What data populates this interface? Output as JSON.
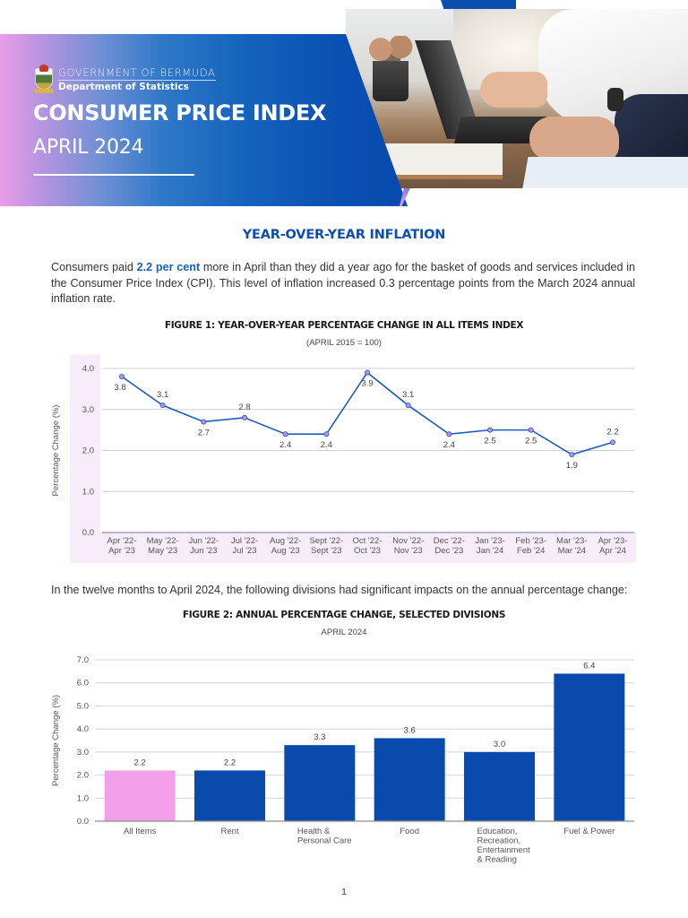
{
  "header": {
    "org_line1": "GOVERNMENT OF BERMUDA",
    "org_line2": "Department of Statistics",
    "title": "CONSUMER PRICE INDEX",
    "period": "APRIL 2024",
    "colors": {
      "brand_blue": "#0b4fb0",
      "brand_pink": "#ea9de8"
    }
  },
  "section": {
    "heading": "YEAR-OVER-YEAR INFLATION",
    "para1_pre": "Consumers paid ",
    "para1_highlight": "2.2 per cent",
    "para1_post": " more in April than they did a year ago for the basket of goods and services included in the Consumer Price Index (CPI). This level of inflation increased 0.3 percentage points from the March 2024 annual inflation rate.",
    "para2": "In the twelve months to April 2024, the following divisions had significant impacts on the annual percentage change:"
  },
  "figure1": {
    "title": "FIGURE 1: YEAR-OVER-YEAR PERCENTAGE CHANGE IN ALL ITEMS INDEX",
    "subtitle": "(APRIL 2015 = 100)"
  },
  "figure2": {
    "title": "FIGURE 2: ANNUAL PERCENTAGE CHANGE, SELECTED DIVISIONS",
    "subtitle": "APRIL 2024"
  },
  "page_number": "1",
  "chart_data": [
    {
      "type": "line",
      "title": "FIGURE 1: YEAR-OVER-YEAR PERCENTAGE CHANGE IN ALL ITEMS INDEX",
      "subtitle": "(APRIL 2015 = 100)",
      "xlabel": "",
      "ylabel": "Percentage Change (%)",
      "ylim": [
        0,
        4
      ],
      "yticks": [
        "0.0",
        "1.0",
        "2.0",
        "3.0",
        "4.0"
      ],
      "grid": true,
      "legend": null,
      "categories": [
        [
          "Apr '22-",
          "Apr '23"
        ],
        [
          "May '22-",
          "May '23"
        ],
        [
          "Jun '22-",
          "Jun '23"
        ],
        [
          "Jul '22-",
          "Jul '23"
        ],
        [
          "Aug '22-",
          "Aug '23"
        ],
        [
          "Sept '22-",
          "Sept '23"
        ],
        [
          "Oct '22-",
          "Oct '23"
        ],
        [
          "Nov '22-",
          "Nov '23"
        ],
        [
          "Dec '22-",
          "Dec '23"
        ],
        [
          "Jan '23-",
          "Jan '24"
        ],
        [
          "Feb '23-",
          "Feb '24"
        ],
        [
          "Mar '23-",
          "Mar '24"
        ],
        [
          "Apr '23-",
          "Apr '24"
        ]
      ],
      "values": [
        3.8,
        3.1,
        2.7,
        2.8,
        2.4,
        2.4,
        3.9,
        3.1,
        2.4,
        2.5,
        2.5,
        1.9,
        2.2
      ],
      "label_pos": [
        "below",
        "above",
        "below",
        "above",
        "below",
        "below",
        "below",
        "above",
        "below",
        "below",
        "below",
        "below",
        "above"
      ],
      "colors": {
        "line": "#1a5cc0",
        "marker": "#c58ae8",
        "panel": "#f6ecfa"
      }
    },
    {
      "type": "bar",
      "title": "FIGURE 2: ANNUAL PERCENTAGE CHANGE, SELECTED DIVISIONS",
      "subtitle": "APRIL 2024",
      "xlabel": "",
      "ylabel": "Percentage Change (%)",
      "ylim": [
        0,
        7
      ],
      "yticks": [
        "0.0",
        "1.0",
        "2.0",
        "3.0",
        "4.0",
        "5.0",
        "6.0",
        "7.0"
      ],
      "grid": true,
      "legend": null,
      "categories": [
        [
          "All Items"
        ],
        [
          "Rent"
        ],
        [
          "Health &",
          "Personal Care"
        ],
        [
          "Food"
        ],
        [
          "Education,",
          "Recreation,",
          "Entertainment",
          "& Reading"
        ],
        [
          "Fuel & Power"
        ]
      ],
      "values": [
        2.2,
        2.2,
        3.3,
        3.6,
        3.0,
        6.4
      ],
      "value_labels": [
        "2.2",
        "2.2",
        "3.3",
        "3.6",
        "3.0",
        "6.4"
      ],
      "bar_colors": [
        "#f39fe9",
        "#0b4aad",
        "#0b4aad",
        "#0b4aad",
        "#0b4aad",
        "#0b4aad"
      ]
    }
  ]
}
